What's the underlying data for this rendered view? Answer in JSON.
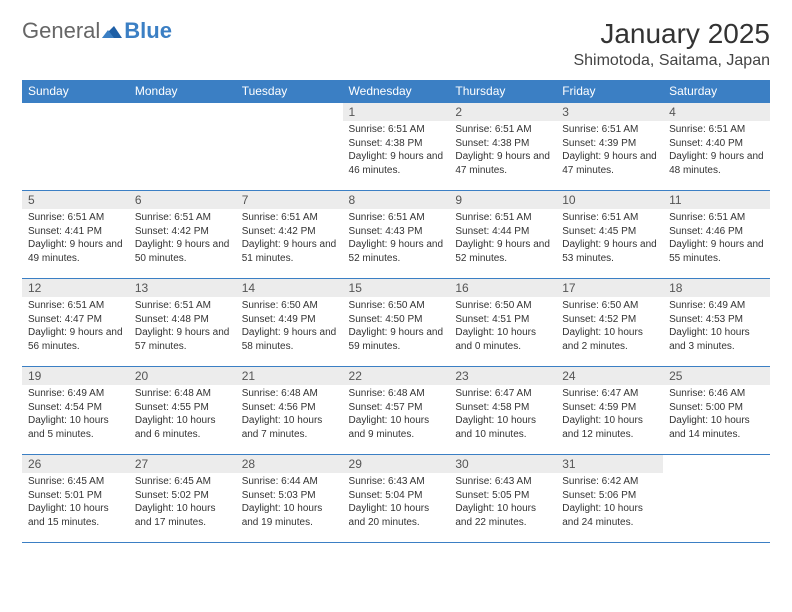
{
  "logo": {
    "text1": "General",
    "text2": "Blue"
  },
  "title": "January 2025",
  "location": "Shimotoda, Saitama, Japan",
  "colors": {
    "header_bg": "#3b7fc4",
    "header_text": "#ffffff",
    "daynum_bg": "#ececec",
    "border": "#3b7fc4",
    "page_bg": "#ffffff",
    "text": "#333333"
  },
  "weekdays": [
    "Sunday",
    "Monday",
    "Tuesday",
    "Wednesday",
    "Thursday",
    "Friday",
    "Saturday"
  ],
  "weeks": [
    [
      null,
      null,
      null,
      {
        "n": "1",
        "sr": "6:51 AM",
        "ss": "4:38 PM",
        "dl": "9 hours and 46 minutes."
      },
      {
        "n": "2",
        "sr": "6:51 AM",
        "ss": "4:38 PM",
        "dl": "9 hours and 47 minutes."
      },
      {
        "n": "3",
        "sr": "6:51 AM",
        "ss": "4:39 PM",
        "dl": "9 hours and 47 minutes."
      },
      {
        "n": "4",
        "sr": "6:51 AM",
        "ss": "4:40 PM",
        "dl": "9 hours and 48 minutes."
      }
    ],
    [
      {
        "n": "5",
        "sr": "6:51 AM",
        "ss": "4:41 PM",
        "dl": "9 hours and 49 minutes."
      },
      {
        "n": "6",
        "sr": "6:51 AM",
        "ss": "4:42 PM",
        "dl": "9 hours and 50 minutes."
      },
      {
        "n": "7",
        "sr": "6:51 AM",
        "ss": "4:42 PM",
        "dl": "9 hours and 51 minutes."
      },
      {
        "n": "8",
        "sr": "6:51 AM",
        "ss": "4:43 PM",
        "dl": "9 hours and 52 minutes."
      },
      {
        "n": "9",
        "sr": "6:51 AM",
        "ss": "4:44 PM",
        "dl": "9 hours and 52 minutes."
      },
      {
        "n": "10",
        "sr": "6:51 AM",
        "ss": "4:45 PM",
        "dl": "9 hours and 53 minutes."
      },
      {
        "n": "11",
        "sr": "6:51 AM",
        "ss": "4:46 PM",
        "dl": "9 hours and 55 minutes."
      }
    ],
    [
      {
        "n": "12",
        "sr": "6:51 AM",
        "ss": "4:47 PM",
        "dl": "9 hours and 56 minutes."
      },
      {
        "n": "13",
        "sr": "6:51 AM",
        "ss": "4:48 PM",
        "dl": "9 hours and 57 minutes."
      },
      {
        "n": "14",
        "sr": "6:50 AM",
        "ss": "4:49 PM",
        "dl": "9 hours and 58 minutes."
      },
      {
        "n": "15",
        "sr": "6:50 AM",
        "ss": "4:50 PM",
        "dl": "9 hours and 59 minutes."
      },
      {
        "n": "16",
        "sr": "6:50 AM",
        "ss": "4:51 PM",
        "dl": "10 hours and 0 minutes."
      },
      {
        "n": "17",
        "sr": "6:50 AM",
        "ss": "4:52 PM",
        "dl": "10 hours and 2 minutes."
      },
      {
        "n": "18",
        "sr": "6:49 AM",
        "ss": "4:53 PM",
        "dl": "10 hours and 3 minutes."
      }
    ],
    [
      {
        "n": "19",
        "sr": "6:49 AM",
        "ss": "4:54 PM",
        "dl": "10 hours and 5 minutes."
      },
      {
        "n": "20",
        "sr": "6:48 AM",
        "ss": "4:55 PM",
        "dl": "10 hours and 6 minutes."
      },
      {
        "n": "21",
        "sr": "6:48 AM",
        "ss": "4:56 PM",
        "dl": "10 hours and 7 minutes."
      },
      {
        "n": "22",
        "sr": "6:48 AM",
        "ss": "4:57 PM",
        "dl": "10 hours and 9 minutes."
      },
      {
        "n": "23",
        "sr": "6:47 AM",
        "ss": "4:58 PM",
        "dl": "10 hours and 10 minutes."
      },
      {
        "n": "24",
        "sr": "6:47 AM",
        "ss": "4:59 PM",
        "dl": "10 hours and 12 minutes."
      },
      {
        "n": "25",
        "sr": "6:46 AM",
        "ss": "5:00 PM",
        "dl": "10 hours and 14 minutes."
      }
    ],
    [
      {
        "n": "26",
        "sr": "6:45 AM",
        "ss": "5:01 PM",
        "dl": "10 hours and 15 minutes."
      },
      {
        "n": "27",
        "sr": "6:45 AM",
        "ss": "5:02 PM",
        "dl": "10 hours and 17 minutes."
      },
      {
        "n": "28",
        "sr": "6:44 AM",
        "ss": "5:03 PM",
        "dl": "10 hours and 19 minutes."
      },
      {
        "n": "29",
        "sr": "6:43 AM",
        "ss": "5:04 PM",
        "dl": "10 hours and 20 minutes."
      },
      {
        "n": "30",
        "sr": "6:43 AM",
        "ss": "5:05 PM",
        "dl": "10 hours and 22 minutes."
      },
      {
        "n": "31",
        "sr": "6:42 AM",
        "ss": "5:06 PM",
        "dl": "10 hours and 24 minutes."
      },
      null
    ]
  ],
  "labels": {
    "sunrise": "Sunrise: ",
    "sunset": "Sunset: ",
    "daylight": "Daylight: "
  }
}
